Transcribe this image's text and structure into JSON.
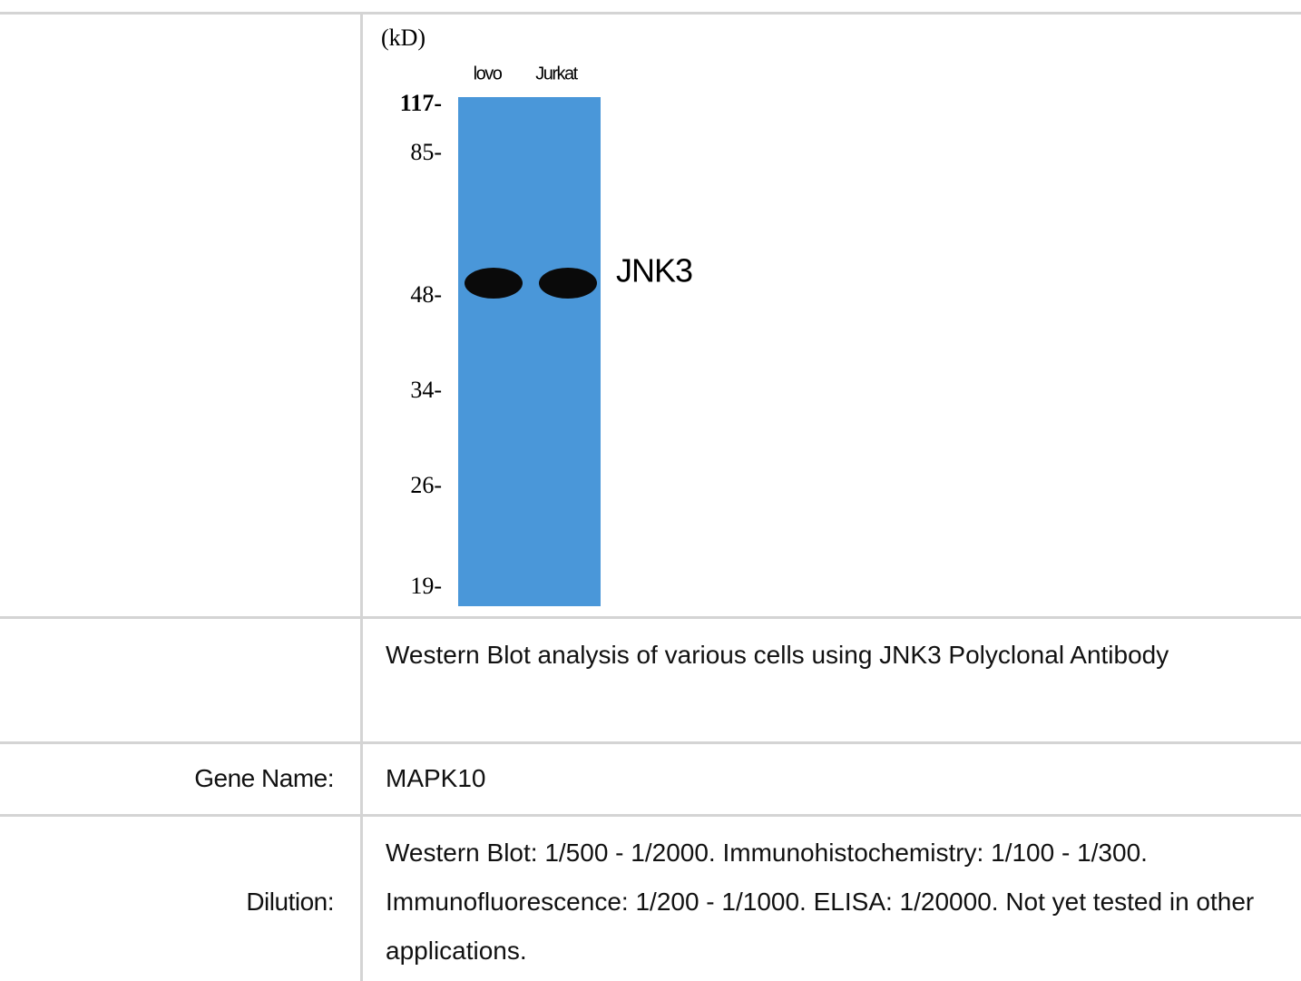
{
  "image": {
    "unit_label": "(kD)",
    "lanes": [
      "lovo",
      "Jurkat"
    ],
    "markers": [
      "117-",
      "85-",
      "48-",
      "34-",
      "26-",
      "19-"
    ],
    "band_label": "JNK3"
  },
  "caption": "Western Blot analysis of various cells using JNK3 Polyclonal Antibody",
  "table": {
    "rows": [
      [
        "Gene Name:",
        "MAPK10"
      ],
      [
        "Dilution:",
        "Western Blot: 1/500 - 1/2000. Immunohistochemistry: 1/100 - 1/300. Immunofluorescence: 1/200 - 1/1000. ELISA: 1/20000. Not yet tested in other applications."
      ]
    ]
  }
}
